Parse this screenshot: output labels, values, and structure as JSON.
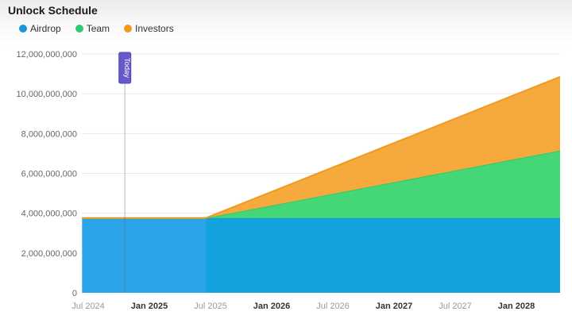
{
  "header": {
    "title": "Unlock Schedule"
  },
  "legend": {
    "position": "top-left"
  },
  "today_marker": {
    "label": "Today",
    "month_from_start": 3.6,
    "badge_color": "#655ac8",
    "badge_border": "#5448b8"
  },
  "colors": {
    "grid": "#e7e7e7",
    "today_line": "rgba(90,90,120,0.35)",
    "ylabel": "#666666",
    "xlabel_regular": "#999999",
    "xlabel_bold": "#333333"
  },
  "chart_data": {
    "type": "area",
    "stacked": true,
    "title": "Unlock Schedule",
    "xlabel": "",
    "ylabel": "",
    "ylim": [
      0,
      12000000000
    ],
    "grid": "horizontal",
    "legend_position": "top-left",
    "x_domain_months_from_jul2024": [
      -0.6,
      46.3
    ],
    "y_ticks": [
      {
        "value": 0,
        "label": "0"
      },
      {
        "value": 2000000000,
        "label": "2,000,000,000"
      },
      {
        "value": 4000000000,
        "label": "4,000,000,000"
      },
      {
        "value": 6000000000,
        "label": "6,000,000,000"
      },
      {
        "value": 8000000000,
        "label": "8,000,000,000"
      },
      {
        "value": 10000000000,
        "label": "10,000,000,000"
      },
      {
        "value": 12000000000,
        "label": "12,000,000,000"
      }
    ],
    "x_ticks": [
      {
        "month": 0,
        "label": "Jul 2024",
        "bold": false
      },
      {
        "month": 6,
        "label": "Jan 2025",
        "bold": true
      },
      {
        "month": 12,
        "label": "Jul 2025",
        "bold": false
      },
      {
        "month": 18,
        "label": "Jan 2026",
        "bold": true
      },
      {
        "month": 24,
        "label": "Jul 2026",
        "bold": false
      },
      {
        "month": 30,
        "label": "Jan 2027",
        "bold": true
      },
      {
        "month": 36,
        "label": "Jul 2027",
        "bold": false
      },
      {
        "month": 42,
        "label": "Jan 2028",
        "bold": true
      }
    ],
    "series": [
      {
        "name": "Airdrop",
        "legend_color": "#1b95d8",
        "fill": "#2ca4ea",
        "fill_after_ramp_start": "#14a3df",
        "stroke": "#1993d8",
        "points": [
          {
            "month": -0.6,
            "value": 3750000000
          },
          {
            "month": 11.5,
            "value": 3750000000
          },
          {
            "month": 46.3,
            "value": 3750000000
          }
        ]
      },
      {
        "name": "Team",
        "legend_color": "#2ecb70",
        "fill": "#45d676",
        "stroke": "#2fc96d",
        "points": [
          {
            "month": -0.6,
            "value": 0
          },
          {
            "month": 11.5,
            "value": 0
          },
          {
            "month": 46.3,
            "value": 3400000000
          }
        ]
      },
      {
        "name": "Investors",
        "legend_color": "#f0981f",
        "fill": "#f6a93c",
        "stroke": "#f09a1f",
        "points": [
          {
            "month": -0.6,
            "value": 0
          },
          {
            "month": 11.5,
            "value": 0
          },
          {
            "month": 46.3,
            "value": 3700000000
          }
        ]
      }
    ],
    "approx_values_at_ticks": {
      "note": "cumulative stack tops read from gridlines",
      "Airdrop_flat": 3750000000,
      "stack_top_jul2025": 3750000000,
      "stack_top_jan2027": 7600000000,
      "stack_top_end": 10850000000
    }
  }
}
